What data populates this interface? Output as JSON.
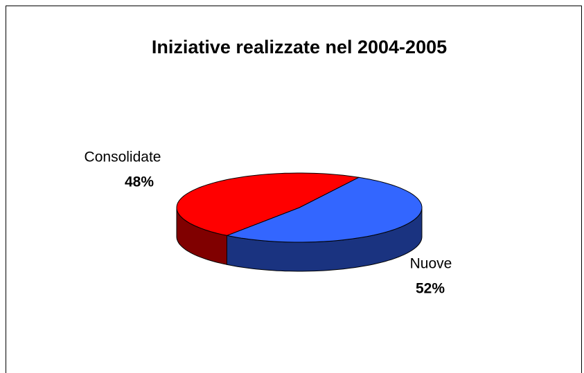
{
  "chart_data": {
    "type": "pie",
    "title": "Iniziative realizzate nel 2004-2005",
    "categories": [
      "Consolidate",
      "Nuove"
    ],
    "values": [
      48,
      52
    ],
    "value_labels": [
      "48%",
      "52%"
    ],
    "colors": [
      "#ff0000",
      "#3366ff"
    ]
  }
}
